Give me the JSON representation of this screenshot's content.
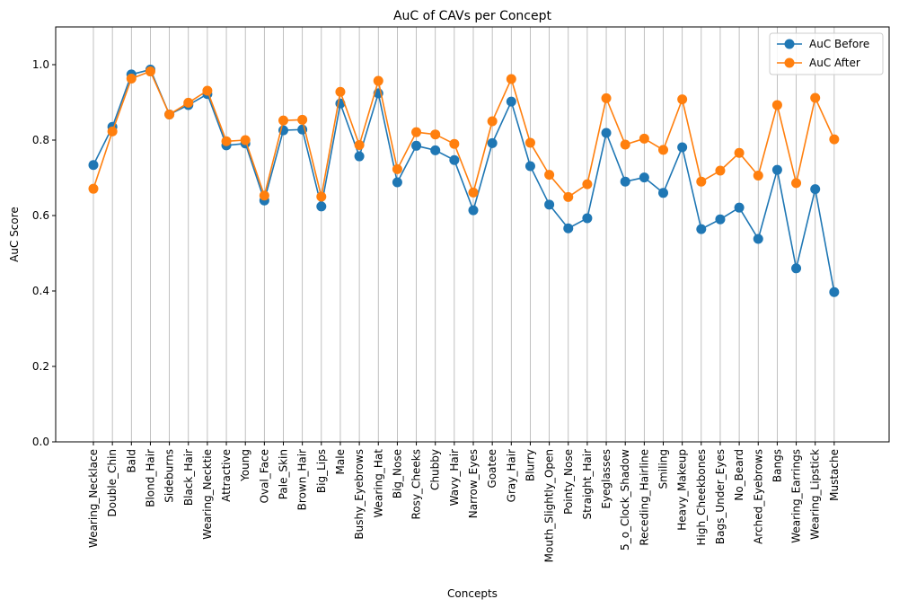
{
  "chart_data": {
    "type": "line",
    "title": "AuC of CAVs per Concept",
    "xlabel": "Concepts",
    "ylabel": "AuC Score",
    "ylim": [
      0.0,
      1.1
    ],
    "yticks": [
      "0.0",
      "0.2",
      "0.4",
      "0.6",
      "0.8",
      "1.0"
    ],
    "grid": "vertical",
    "legend_position": "top-right",
    "categories": [
      "Wearing_Necklace",
      "Double_Chin",
      "Bald",
      "Blond_Hair",
      "Sideburns",
      "Black_Hair",
      "Wearing_Necktie",
      "Attractive",
      "Young",
      "Oval_Face",
      "Pale_Skin",
      "Brown_Hair",
      "Big_Lips",
      "Male",
      "Bushy_Eyebrows",
      "Wearing_Hat",
      "Big_Nose",
      "Rosy_Cheeks",
      "Chubby",
      "Wavy_Hair",
      "Narrow_Eyes",
      "Goatee",
      "Gray_Hair",
      "Blurry",
      "Mouth_Slightly_Open",
      "Pointy_Nose",
      "Straight_Hair",
      "Eyeglasses",
      "5_o_Clock_Shadow",
      "Receding_Hairline",
      "Smiling",
      "Heavy_Makeup",
      "High_Cheekbones",
      "Bags_Under_Eyes",
      "No_Beard",
      "Arched_Eyebrows",
      "Bangs",
      "Wearing_Earrings",
      "Wearing_Lipstick",
      "Mustache"
    ],
    "series": [
      {
        "name": "AuC Before",
        "color": "#1f77b4",
        "values": [
          0.734,
          0.835,
          0.974,
          0.987,
          0.868,
          0.893,
          0.922,
          0.786,
          0.791,
          0.64,
          0.826,
          0.828,
          0.624,
          0.897,
          0.757,
          0.924,
          0.688,
          0.785,
          0.773,
          0.747,
          0.614,
          0.792,
          0.902,
          0.731,
          0.629,
          0.566,
          0.593,
          0.819,
          0.69,
          0.701,
          0.66,
          0.781,
          0.564,
          0.59,
          0.621,
          0.538,
          0.721,
          0.46,
          0.67,
          0.397
        ]
      },
      {
        "name": "AuC After",
        "color": "#ff7f0e",
        "values": [
          0.671,
          0.823,
          0.963,
          0.982,
          0.868,
          0.899,
          0.931,
          0.797,
          0.8,
          0.653,
          0.852,
          0.854,
          0.65,
          0.928,
          0.787,
          0.957,
          0.723,
          0.821,
          0.815,
          0.79,
          0.661,
          0.85,
          0.962,
          0.793,
          0.708,
          0.649,
          0.683,
          0.911,
          0.788,
          0.804,
          0.774,
          0.908,
          0.69,
          0.719,
          0.766,
          0.706,
          0.893,
          0.686,
          0.912,
          0.802
        ]
      }
    ]
  }
}
